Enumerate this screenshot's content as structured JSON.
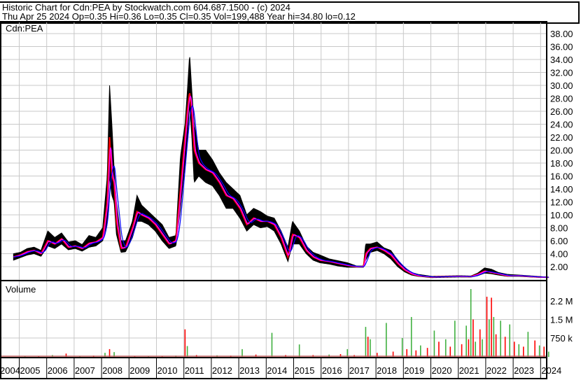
{
  "header": {
    "line1": "Historic Chart for Cdn:PEA by Stockwatch.com 604.687.1500 - (c) 2024",
    "line2": "Thu Apr 25 2024  Op=0.35  Hi=0.36  Lo=0.35  Cl=0.35  Vol=199,488  Year hi=34.80  lo=0.12"
  },
  "chart_data": {
    "type": "line",
    "symbol_label": "Cdn:PEA",
    "volume_label": "Volume",
    "price_ticks": [
      "2.00",
      "4.00",
      "6.00",
      "8.00",
      "10.00",
      "12.00",
      "14.00",
      "16.00",
      "18.00",
      "20.00",
      "22.00",
      "24.00",
      "26.00",
      "28.00",
      "30.00",
      "32.00",
      "34.00",
      "36.00",
      "38.00"
    ],
    "price_ylim": [
      0,
      40
    ],
    "volume_ticks": [
      {
        "label": "750 k",
        "value": 750000
      },
      {
        "label": "1.5 M",
        "value": 1500000
      },
      {
        "label": "2.2 M",
        "value": 2250000
      }
    ],
    "years": [
      "2004",
      "2005",
      "2006",
      "2007",
      "2008",
      "2009",
      "2010",
      "2011",
      "2012",
      "2013",
      "2014",
      "2015",
      "2016",
      "2017",
      "2018",
      "2019",
      "2020",
      "2021",
      "2022",
      "2023",
      "2024"
    ],
    "grid": true,
    "colors": {
      "bars": "#000000",
      "close": "#ff0000",
      "ma_short": "#ff00ff",
      "ma_long": "#0000ff",
      "vol_up": "#40b040",
      "vol_down": "#ff0000",
      "grid": "#c8c8c8"
    },
    "price": [
      [
        "2004-10",
        3.5,
        4.0,
        3.0
      ],
      [
        "2005-01",
        3.8,
        4.2,
        3.4
      ],
      [
        "2005-04",
        4.3,
        4.8,
        3.8
      ],
      [
        "2005-07",
        4.5,
        5.0,
        4.0
      ],
      [
        "2005-10",
        4.0,
        4.5,
        3.6
      ],
      [
        "2006-01",
        6.0,
        7.5,
        5.2
      ],
      [
        "2006-04",
        5.5,
        6.5,
        4.8
      ],
      [
        "2006-07",
        6.3,
        7.2,
        5.5
      ],
      [
        "2006-10",
        5.0,
        5.8,
        4.6
      ],
      [
        "2007-01",
        5.2,
        6.0,
        4.8
      ],
      [
        "2007-04",
        4.8,
        5.4,
        4.4
      ],
      [
        "2007-07",
        5.6,
        6.8,
        5.0
      ],
      [
        "2007-10",
        5.8,
        6.5,
        5.2
      ],
      [
        "2008-01",
        6.5,
        8.0,
        6.0
      ],
      [
        "2008-03",
        12,
        16,
        9
      ],
      [
        "2008-04",
        22,
        30,
        16
      ],
      [
        "2008-05",
        16,
        24,
        13
      ],
      [
        "2008-06",
        15,
        17,
        12
      ],
      [
        "2008-07",
        9,
        12,
        7
      ],
      [
        "2008-09",
        4.8,
        6,
        4.2
      ],
      [
        "2008-11",
        5.0,
        6,
        4.3
      ],
      [
        "2009-02",
        8.0,
        9,
        6.5
      ],
      [
        "2009-04",
        10.5,
        13,
        9
      ],
      [
        "2009-06",
        10,
        11.5,
        9
      ],
      [
        "2009-09",
        9.5,
        10.5,
        8.5
      ],
      [
        "2009-12",
        8.5,
        9.5,
        7.5
      ],
      [
        "2010-03",
        7.0,
        8.5,
        6.0
      ],
      [
        "2010-06",
        5.5,
        6.5,
        4.8
      ],
      [
        "2010-09",
        6.0,
        6.8,
        5.2
      ],
      [
        "2010-11",
        14,
        19,
        11
      ],
      [
        "2011-01",
        22,
        24,
        18
      ],
      [
        "2011-02",
        26,
        29,
        22
      ],
      [
        "2011-03",
        29,
        34.8,
        27
      ],
      [
        "2011-04",
        26,
        29,
        22
      ],
      [
        "2011-05",
        20,
        24,
        15
      ],
      [
        "2011-07",
        18,
        20,
        16
      ],
      [
        "2011-10",
        17,
        20,
        15
      ],
      [
        "2012-01",
        16.5,
        18.5,
        14.5
      ],
      [
        "2012-04",
        15,
        16.5,
        13
      ],
      [
        "2012-07",
        13,
        15,
        11
      ],
      [
        "2012-10",
        12.5,
        14,
        11
      ],
      [
        "2013-01",
        11,
        13,
        9.5
      ],
      [
        "2013-04",
        8.5,
        10,
        7.5
      ],
      [
        "2013-07",
        9.5,
        11,
        8.5
      ],
      [
        "2013-10",
        9,
        10.5,
        8
      ],
      [
        "2014-01",
        9,
        9.8,
        8.2
      ],
      [
        "2014-04",
        8.5,
        9.5,
        7.5
      ],
      [
        "2014-07",
        6.5,
        7.5,
        5.5
      ],
      [
        "2014-10",
        3.5,
        5,
        2.8
      ],
      [
        "2014-12",
        7.0,
        9,
        5.5
      ],
      [
        "2015-03",
        6.5,
        7.5,
        5.5
      ],
      [
        "2015-06",
        4.5,
        5.2,
        4.0
      ],
      [
        "2015-09",
        3.5,
        4.2,
        3.0
      ],
      [
        "2015-12",
        3.0,
        3.8,
        2.6
      ],
      [
        "2016-04",
        2.8,
        3.2,
        2.4
      ],
      [
        "2016-08",
        2.5,
        2.9,
        2.1
      ],
      [
        "2016-12",
        2.2,
        2.6,
        1.9
      ],
      [
        "2017-04",
        2.0,
        2.1,
        1.9
      ],
      [
        "2017-07",
        2.0,
        2.1,
        1.9
      ],
      [
        "2017-08",
        4.0,
        5.5,
        3.0
      ],
      [
        "2017-10",
        4.8,
        5.5,
        4.2
      ],
      [
        "2018-01",
        5.0,
        5.8,
        4.5
      ],
      [
        "2018-04",
        4.5,
        4.9,
        4.0
      ],
      [
        "2018-07",
        3.8,
        4.5,
        3.2
      ],
      [
        "2018-10",
        2.5,
        3.0,
        2.0
      ],
      [
        "2019-01",
        1.5,
        1.8,
        1.2
      ],
      [
        "2019-04",
        0.9,
        1.1,
        0.7
      ],
      [
        "2019-07",
        0.6,
        0.8,
        0.5
      ],
      [
        "2020-01",
        0.4,
        0.5,
        0.3
      ],
      [
        "2020-07",
        0.45,
        0.55,
        0.35
      ],
      [
        "2021-01",
        0.5,
        0.6,
        0.4
      ],
      [
        "2021-06",
        0.45,
        0.55,
        0.38
      ],
      [
        "2021-09",
        0.8,
        1.0,
        0.6
      ],
      [
        "2021-12",
        1.3,
        1.8,
        1.0
      ],
      [
        "2022-03",
        1.1,
        1.6,
        0.9
      ],
      [
        "2022-06",
        0.9,
        1.1,
        0.7
      ],
      [
        "2022-10",
        0.6,
        0.8,
        0.5
      ],
      [
        "2023-03",
        0.6,
        0.7,
        0.5
      ],
      [
        "2023-09",
        0.45,
        0.55,
        0.38
      ],
      [
        "2024-01",
        0.38,
        0.45,
        0.32
      ],
      [
        "2024-04",
        0.35,
        0.36,
        0.35
      ]
    ],
    "volume": [
      [
        "2005-03",
        30000
      ],
      [
        "2005-09",
        25000
      ],
      [
        "2006-03",
        60000
      ],
      [
        "2006-09",
        120000
      ],
      [
        "2007-03",
        30000
      ],
      [
        "2007-09",
        40000
      ],
      [
        "2008-02",
        150000
      ],
      [
        "2008-04",
        300000
      ],
      [
        "2008-06",
        180000
      ],
      [
        "2009-03",
        30000
      ],
      [
        "2009-09",
        25000
      ],
      [
        "2010-03",
        30000
      ],
      [
        "2010-09",
        40000
      ],
      [
        "2011-01",
        1100000
      ],
      [
        "2011-02",
        425000
      ],
      [
        "2011-06",
        60000
      ],
      [
        "2012-03",
        50000
      ],
      [
        "2012-09",
        40000
      ],
      [
        "2013-02",
        300000
      ],
      [
        "2013-08",
        80000
      ],
      [
        "2014-03",
        960000
      ],
      [
        "2014-09",
        60000
      ],
      [
        "2015-03",
        490000
      ],
      [
        "2015-09",
        60000
      ],
      [
        "2016-04",
        80000
      ],
      [
        "2016-09",
        100000
      ],
      [
        "2016-12",
        300000
      ],
      [
        "2017-03",
        60000
      ],
      [
        "2017-08",
        1200000
      ],
      [
        "2017-09",
        800000
      ],
      [
        "2017-10",
        700000
      ],
      [
        "2018-01",
        150000
      ],
      [
        "2018-05",
        1360000
      ],
      [
        "2018-08",
        200000
      ],
      [
        "2018-12",
        750000
      ],
      [
        "2019-02",
        300000
      ],
      [
        "2019-04",
        1600000
      ],
      [
        "2019-06",
        250000
      ],
      [
        "2019-08",
        450000
      ],
      [
        "2019-11",
        350000
      ],
      [
        "2020-02",
        1050000
      ],
      [
        "2020-04",
        600000
      ],
      [
        "2020-07",
        700000
      ],
      [
        "2020-09",
        400000
      ],
      [
        "2020-11",
        1450000
      ],
      [
        "2021-02",
        500000
      ],
      [
        "2021-04",
        1250000
      ],
      [
        "2021-05",
        700000
      ],
      [
        "2021-06",
        2730000
      ],
      [
        "2021-07",
        1500000
      ],
      [
        "2021-08",
        600000
      ],
      [
        "2021-10",
        1100000
      ],
      [
        "2021-11",
        700000
      ],
      [
        "2022-01",
        2420000
      ],
      [
        "2022-02",
        1500000
      ],
      [
        "2022-03",
        2380000
      ],
      [
        "2022-04",
        1600000
      ],
      [
        "2022-05",
        900000
      ],
      [
        "2022-07",
        1450000
      ],
      [
        "2022-09",
        800000
      ],
      [
        "2022-11",
        1300000
      ],
      [
        "2023-01",
        600000
      ],
      [
        "2023-03",
        500000
      ],
      [
        "2023-05",
        400000
      ],
      [
        "2023-07",
        1000000
      ],
      [
        "2023-10",
        650000
      ],
      [
        "2023-12",
        450000
      ],
      [
        "2024-02",
        400000
      ],
      [
        "2024-04",
        199488
      ]
    ]
  }
}
